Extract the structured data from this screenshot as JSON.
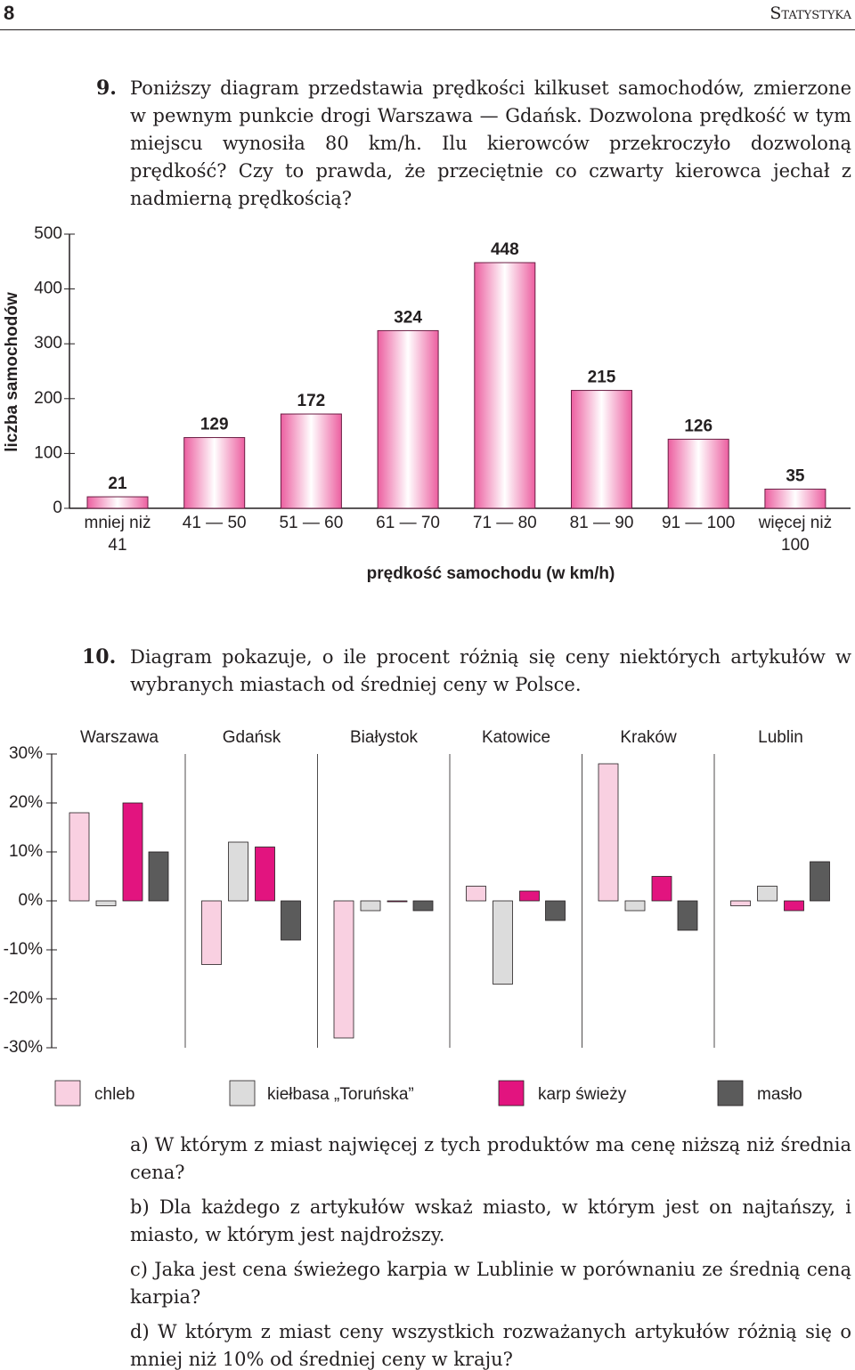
{
  "header": {
    "page_number": "8",
    "section": "Statystyka"
  },
  "exercises": [
    {
      "number": "9.",
      "text": "Poniższy diagram przedstawia prędkości kilkuset samochodów, zmierzone w pewnym punkcie drogi Warszawa — Gdańsk. Dozwolona prędkość w tym miejscu wynosiła 80 km/h. Ilu kierowców przekroczyło dozwoloną prędkość? Czy to prawda, że przeciętnie co czwarty kierowca jechał z nadmierną prędkością?"
    },
    {
      "number": "10.",
      "text": "Diagram pokazuje, o ile procent różnią się ceny niektórych artykułów w wybranych miastach od średniej ceny w Polsce.",
      "questions": [
        {
          "label": "a)",
          "text": "W którym z miast najwięcej z tych produktów ma cenę niższą niż średnia cena?"
        },
        {
          "label": "b)",
          "text": "Dla każdego z artykułów wskaż miasto, w którym jest on najtańszy, i miasto, w którym jest najdroższy."
        },
        {
          "label": "c)",
          "text": "Jaka jest cena świeżego karpia w Lublinie w porównaniu ze średnią ceną karpia?"
        },
        {
          "label": "d)",
          "text": "W którym z miast ceny wszystkich rozważanych artykułów różnią się o mniej niż 10% od średniej ceny w kraju?"
        }
      ]
    }
  ],
  "chart_data": [
    {
      "type": "bar",
      "ylabel": "liczba samochodów",
      "xlabel": "prędkość samochodu (w km/h)",
      "categories": [
        "mniej niż 41",
        "41 — 50",
        "51 — 60",
        "61 — 70",
        "71 — 80",
        "81 — 90",
        "91 — 100",
        "więcej niż 100"
      ],
      "values": [
        21,
        129,
        172,
        324,
        448,
        215,
        126,
        35
      ],
      "color": "#ec5fa0",
      "ylim": [
        0,
        500
      ],
      "yticks": [
        0,
        100,
        200,
        300,
        400,
        500
      ]
    },
    {
      "type": "grouped_bar",
      "categories": [
        "Warszawa",
        "Gdańsk",
        "Białystok",
        "Katowice",
        "Kraków",
        "Lublin"
      ],
      "series": [
        {
          "name": "chleb",
          "color": "#f9d0e1",
          "values": [
            18,
            -13,
            -28,
            3,
            28,
            -1
          ]
        },
        {
          "name": "kiełbasa „Toruńska”",
          "color": "#dcdcdc",
          "values": [
            -1,
            12,
            -2,
            -17,
            -2,
            3
          ]
        },
        {
          "name": "karp świeży",
          "color": "#e2147f",
          "values": [
            20,
            11,
            0,
            2,
            5,
            -2
          ]
        },
        {
          "name": "masło",
          "color": "#5b5b5b",
          "values": [
            10,
            -8,
            -2,
            -4,
            -6,
            8
          ]
        }
      ],
      "ylim": [
        -30,
        30
      ],
      "yticks": [
        {
          "value": -30,
          "label": "-30%"
        },
        {
          "value": -20,
          "label": "-20%"
        },
        {
          "value": -10,
          "label": "-10%"
        },
        {
          "value": 0,
          "label": "0%"
        },
        {
          "value": 10,
          "label": "10%"
        },
        {
          "value": 20,
          "label": "20%"
        },
        {
          "value": 30,
          "label": "30%"
        }
      ]
    }
  ]
}
